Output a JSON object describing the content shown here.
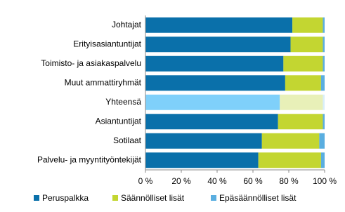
{
  "chart_data": {
    "type": "stacked-barh",
    "categories": [
      "Johtajat",
      "Erityisasiantuntijat",
      "Toimisto- ja asiakaspalvelu",
      "Muut ammattiryhmät",
      "Yhteensä",
      "Asiantuntijat",
      "Sotilaat",
      "Palvelu- ja myyntityöntekijät"
    ],
    "series": [
      {
        "name": "Peruspalkka",
        "color": "#0a70aa",
        "highlight_color": "#7fd0fa",
        "values": [
          82,
          81,
          77,
          78,
          75,
          74,
          65,
          63
        ]
      },
      {
        "name": "Säännölliset lisät",
        "color": "#c3d631",
        "highlight_color": "#e8f0b8",
        "values": [
          17,
          18,
          22,
          20,
          24,
          25,
          32,
          35
        ]
      },
      {
        "name": "Epäsäännölliset lisät",
        "color": "#5aaee0",
        "highlight_color": "#d8eefa",
        "values": [
          1,
          1,
          1,
          2,
          1,
          1,
          3,
          2
        ]
      }
    ],
    "highlight_category": "Yhteensä",
    "xlim": [
      0,
      100
    ],
    "xticks": [
      {
        "value": 0,
        "label": "0 %"
      },
      {
        "value": 20,
        "label": "20 %"
      },
      {
        "value": 40,
        "label": "40 %"
      },
      {
        "value": 60,
        "label": "60 %"
      },
      {
        "value": 80,
        "label": "80 %"
      },
      {
        "value": 100,
        "label": "100 %"
      }
    ],
    "legend": "bottom"
  }
}
